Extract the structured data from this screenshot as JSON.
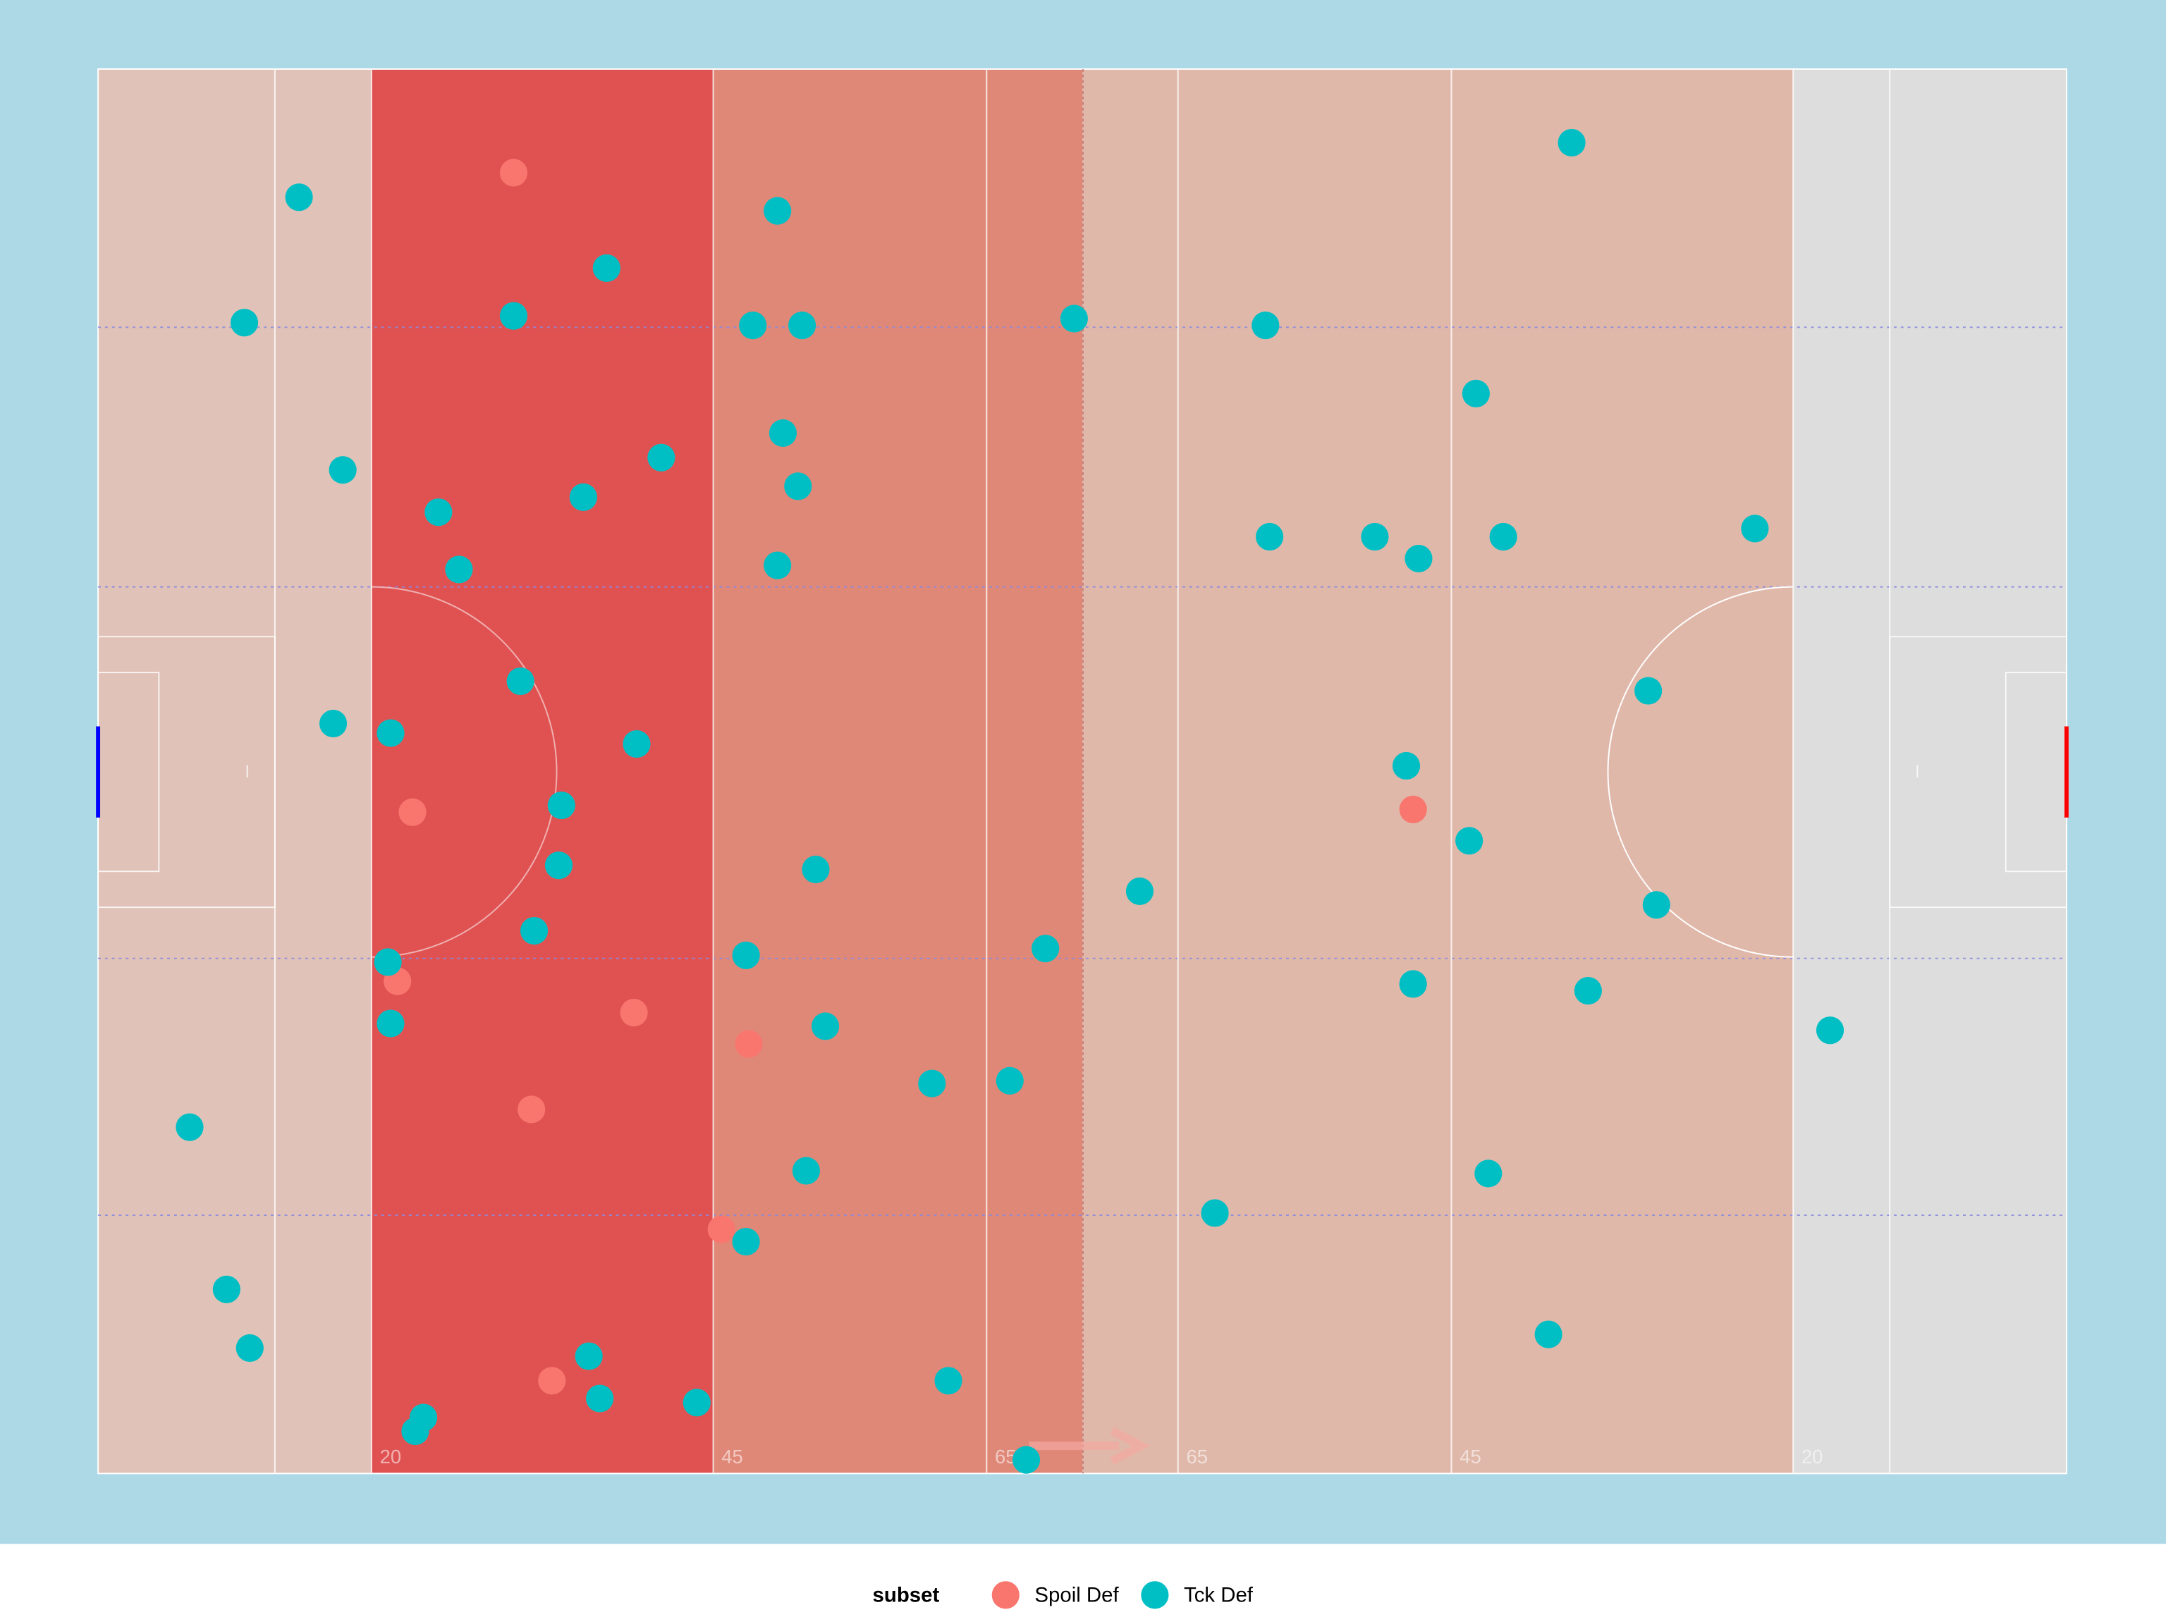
{
  "chart_data": {
    "type": "scatter",
    "xlim": [
      0,
      144
    ],
    "ylim": [
      0,
      103
    ],
    "xticks": [
      20,
      45,
      65,
      {
        "value": 79,
        "label": "65"
      },
      {
        "value": 99,
        "label": "45"
      },
      {
        "value": 124,
        "label": "20"
      }
    ],
    "zones": [
      {
        "from": 0,
        "to": 20,
        "color": "#e0c2b8"
      },
      {
        "from": 20,
        "to": 45,
        "color": "#e05252"
      },
      {
        "from": 45,
        "to": 72,
        "color": "#e08878"
      },
      {
        "from": 72,
        "to": 124,
        "color": "#e0b8aa"
      },
      {
        "from": 124,
        "to": 144,
        "color": "#dddddd"
      }
    ],
    "legend_title": "subset",
    "series": [
      {
        "name": "Spoil Def",
        "color": "#f8766d",
        "x": [
          30.4,
          23.0,
          21.9,
          39.2,
          47.6,
          31.7,
          45.6,
          33.2,
          96.2
        ],
        "values": [
          95.4,
          48.5,
          36.1,
          33.8,
          31.5,
          26.7,
          17.9,
          6.8,
          48.7
        ]
      },
      {
        "name": "Tck Def",
        "color": "#00bfc4",
        "x": [
          14.7,
          10.7,
          30.4,
          37.2,
          49.7,
          47.9,
          51.5,
          71.4,
          85.4,
          107.8,
          100.8,
          17.9,
          24.9,
          26.4,
          35.5,
          41.2,
          50.1,
          51.2,
          49.7,
          85.7,
          93.4,
          96.6,
          102.8,
          121.2,
          17.2,
          21.4,
          30.9,
          39.4,
          33.9,
          113.4,
          95.7,
          33.7,
          52.5,
          100.3,
          76.2,
          31.9,
          21.2,
          47.4,
          69.3,
          114.0,
          21.4,
          53.2,
          96.2,
          109.0,
          126.7,
          6.7,
          61.0,
          66.7,
          51.8,
          101.7,
          81.7,
          47.4,
          9.4,
          11.1,
          106.1,
          35.9,
          36.7,
          43.8,
          62.2,
          23.8,
          23.2,
          67.9
        ],
        "values": [
          93.6,
          84.4,
          84.9,
          88.4,
          92.6,
          84.2,
          84.2,
          84.7,
          84.2,
          97.6,
          79.2,
          73.6,
          70.5,
          66.3,
          71.6,
          74.5,
          76.3,
          72.4,
          66.6,
          68.7,
          68.7,
          67.1,
          68.7,
          69.3,
          55.0,
          54.3,
          58.1,
          53.5,
          49.0,
          57.4,
          51.9,
          44.6,
          44.3,
          46.4,
          42.7,
          39.8,
          37.5,
          38.0,
          38.5,
          41.7,
          33.0,
          32.8,
          35.9,
          35.4,
          32.5,
          25.4,
          28.6,
          28.8,
          22.2,
          22.0,
          19.1,
          17.0,
          13.5,
          9.2,
          10.2,
          8.6,
          5.5,
          5.2,
          6.8,
          4.1,
          3.1,
          1.0
        ]
      }
    ]
  }
}
